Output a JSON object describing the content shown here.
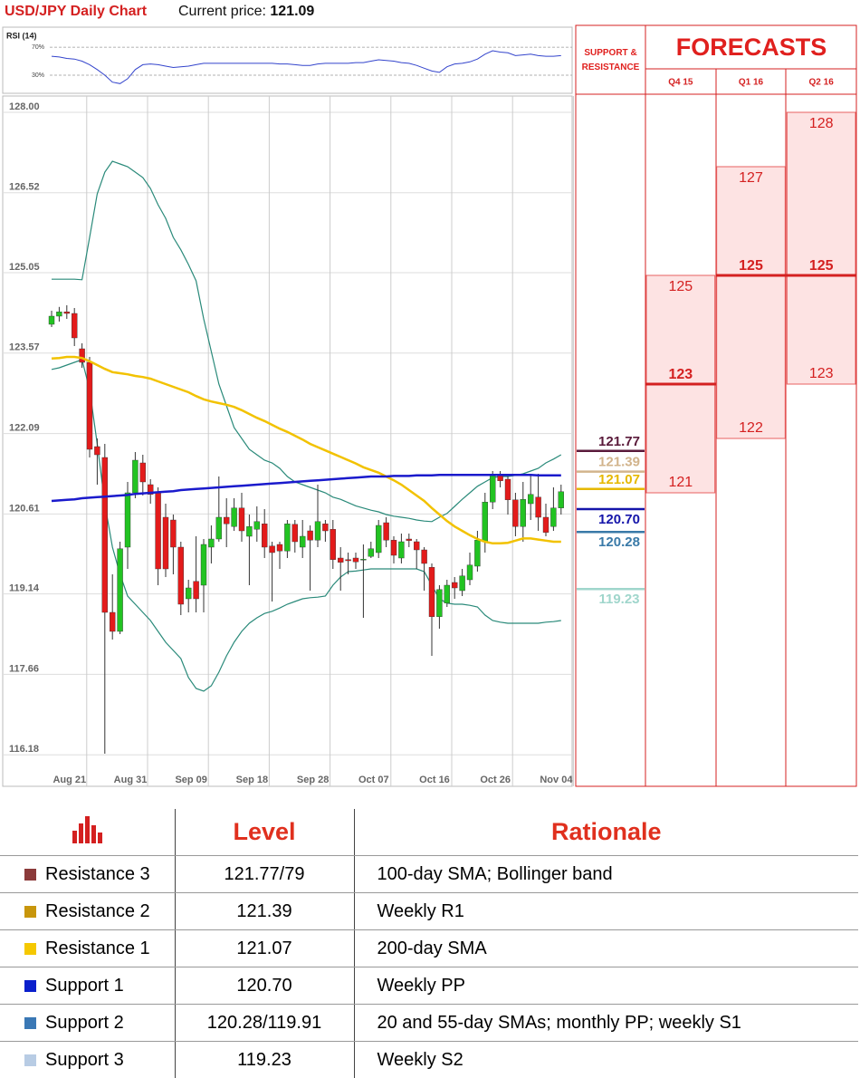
{
  "header": {
    "title": "USD/JPY Daily Chart",
    "price_label": "Current price:",
    "price": 121.09
  },
  "chart_data": [
    {
      "type": "line",
      "title": "RSI (14)",
      "color": "#3344cc",
      "ylim": [
        8,
        96
      ],
      "yticks": [
        {
          "value": 70,
          "label": "70%"
        },
        {
          "value": 30,
          "label": "30%"
        }
      ],
      "values": [
        57,
        56,
        54,
        53,
        50,
        45,
        38,
        30,
        20,
        18,
        25,
        38,
        45,
        46,
        45,
        43,
        41,
        42,
        43,
        45,
        47,
        47,
        47,
        47,
        47,
        47,
        47,
        47,
        47,
        47,
        46,
        46,
        45,
        44,
        44,
        46,
        47,
        47,
        47,
        47,
        48,
        48,
        50,
        52,
        51,
        50,
        48,
        47,
        44,
        40,
        36,
        34,
        42,
        46,
        47,
        49,
        53,
        60,
        65,
        63,
        62,
        58,
        59,
        60,
        58,
        57,
        57,
        58
      ]
    },
    {
      "type": "candlestick",
      "up_color": "#22c322",
      "down_color": "#e31b1b",
      "ylim": [
        115.8,
        128.2
      ],
      "yticks": [
        {
          "value": 128,
          "label": "128.00"
        },
        126.52,
        125.05,
        123.57,
        122.09,
        120.61,
        119.14,
        117.66,
        116.18
      ],
      "grid": true,
      "categories": [
        null,
        null,
        "Aug 21",
        null,
        null,
        null,
        null,
        null,
        null,
        null,
        "Aug 31",
        null,
        null,
        null,
        null,
        null,
        null,
        null,
        "Sep 09",
        null,
        null,
        null,
        null,
        null,
        null,
        null,
        "Sep 18",
        null,
        null,
        null,
        null,
        null,
        null,
        null,
        "Sep 28",
        null,
        null,
        null,
        null,
        null,
        null,
        null,
        "Oct 07",
        null,
        null,
        null,
        null,
        null,
        null,
        null,
        "Oct 16",
        null,
        null,
        null,
        null,
        null,
        null,
        null,
        "Oct 26",
        null,
        null,
        null,
        null,
        null,
        null,
        null,
        "Nov 04",
        null
      ],
      "open": [
        124.1,
        124.25,
        124.33,
        124.3,
        123.65,
        123.4,
        121.85,
        121.65,
        118.8,
        118.45,
        120.0,
        121.0,
        121.55,
        121.15,
        121.0,
        120.55,
        120.5,
        120.0,
        119.05,
        119.37,
        119.3,
        120.0,
        120.15,
        120.55,
        120.38,
        120.72,
        120.2,
        120.33,
        120.43,
        120.02,
        120.05,
        119.93,
        120.42,
        120.0,
        120.3,
        120.13,
        120.43,
        120.33,
        119.8,
        119.77,
        119.8,
        119.77,
        119.83,
        119.9,
        120.45,
        120.13,
        119.8,
        120.15,
        120.1,
        119.95,
        119.63,
        118.72,
        118.97,
        119.35,
        119.2,
        119.4,
        119.65,
        120.1,
        120.83,
        121.33,
        121.25,
        120.87,
        120.38,
        120.8,
        120.92,
        120.55,
        120.38,
        120.72
      ],
      "high": [
        124.35,
        124.42,
        124.45,
        124.4,
        123.75,
        123.5,
        122.0,
        121.9,
        119.5,
        120.1,
        121.2,
        121.75,
        121.7,
        121.25,
        121.1,
        120.8,
        120.6,
        120.1,
        119.4,
        120.2,
        120.15,
        120.4,
        121.3,
        120.9,
        120.9,
        121.0,
        120.6,
        120.75,
        120.7,
        120.1,
        120.1,
        120.5,
        120.5,
        120.5,
        120.4,
        121.15,
        120.5,
        120.5,
        120.0,
        119.9,
        119.9,
        120.05,
        120.1,
        120.5,
        120.55,
        120.2,
        120.25,
        120.25,
        120.15,
        120.0,
        119.7,
        119.3,
        119.4,
        119.45,
        119.6,
        119.9,
        120.3,
        121.0,
        121.4,
        121.4,
        121.3,
        121.0,
        121.2,
        121.35,
        121.35,
        120.8,
        121.1,
        121.15
      ],
      "low": [
        124.05,
        124.15,
        124.2,
        123.7,
        123.3,
        121.65,
        121.15,
        116.2,
        118.3,
        118.4,
        119.6,
        120.9,
        120.95,
        120.8,
        119.3,
        119.45,
        119.5,
        118.75,
        118.8,
        118.8,
        118.8,
        119.7,
        120.1,
        120.0,
        120.3,
        120.1,
        119.3,
        120.1,
        119.8,
        119.0,
        119.6,
        119.8,
        119.9,
        119.8,
        119.2,
        120.0,
        120.1,
        119.6,
        119.2,
        119.5,
        119.6,
        118.7,
        119.8,
        119.8,
        120.0,
        119.7,
        119.7,
        120.0,
        119.6,
        119.2,
        118.0,
        118.5,
        118.9,
        119.05,
        119.1,
        119.3,
        119.55,
        119.9,
        120.7,
        121.1,
        120.6,
        120.2,
        120.1,
        120.5,
        120.3,
        120.2,
        120.3,
        120.6
      ],
      "close": [
        124.25,
        124.33,
        124.3,
        123.85,
        123.4,
        121.8,
        121.7,
        118.8,
        118.45,
        119.97,
        121.0,
        121.6,
        121.2,
        120.97,
        119.6,
        119.6,
        120.0,
        118.95,
        119.25,
        119.05,
        120.05,
        120.15,
        120.55,
        120.43,
        120.72,
        120.3,
        120.38,
        120.47,
        120.0,
        119.9,
        119.93,
        120.43,
        120.1,
        120.2,
        120.13,
        120.47,
        120.3,
        119.77,
        119.72,
        119.75,
        119.73,
        119.78,
        119.97,
        120.4,
        120.13,
        119.85,
        120.1,
        120.12,
        119.95,
        119.7,
        118.72,
        119.22,
        119.3,
        119.25,
        119.47,
        119.67,
        120.13,
        120.83,
        121.33,
        121.22,
        120.87,
        120.38,
        120.88,
        120.97,
        120.55,
        120.27,
        120.72,
        121.02
      ],
      "overlays": [
        {
          "color": "#2a8a7a",
          "width": 1.2,
          "values": [
            124.93,
            124.93,
            124.93,
            124.93,
            124.92,
            125.7,
            126.5,
            126.9,
            127.1,
            127.05,
            127.0,
            126.9,
            126.8,
            126.6,
            126.3,
            126.05,
            125.7,
            125.47,
            125.2,
            124.9,
            124.2,
            123.6,
            123.0,
            122.6,
            122.2,
            122.0,
            121.8,
            121.7,
            121.6,
            121.55,
            121.45,
            121.3,
            121.2,
            121.15,
            121.1,
            121.05,
            121.0,
            120.92,
            120.88,
            120.82,
            120.76,
            120.72,
            120.68,
            120.65,
            120.6,
            120.57,
            120.55,
            120.53,
            120.5,
            120.48,
            120.47,
            120.55,
            120.62,
            120.75,
            120.88,
            121.0,
            121.12,
            121.2,
            121.28,
            121.3,
            121.3,
            121.32,
            121.35,
            121.4,
            121.45,
            121.55,
            121.62,
            121.7
          ]
        },
        {
          "color": "#2a8a7a",
          "width": 1.2,
          "values": [
            123.27,
            123.3,
            123.35,
            123.4,
            123.45,
            122.9,
            121.9,
            120.8,
            120.0,
            119.5,
            119.1,
            118.95,
            118.8,
            118.65,
            118.45,
            118.25,
            118.1,
            117.95,
            117.6,
            117.4,
            117.35,
            117.45,
            117.7,
            118.0,
            118.25,
            118.45,
            118.6,
            118.7,
            118.78,
            118.82,
            118.88,
            118.95,
            119.0,
            119.05,
            119.07,
            119.08,
            119.1,
            119.3,
            119.45,
            119.55,
            119.56,
            119.58,
            119.6,
            119.6,
            119.6,
            119.6,
            119.6,
            119.6,
            119.6,
            119.55,
            119.3,
            119.05,
            118.97,
            118.95,
            118.95,
            118.93,
            118.9,
            118.75,
            118.65,
            118.62,
            118.6,
            118.6,
            118.6,
            118.6,
            118.6,
            118.62,
            118.63,
            118.65
          ]
        },
        {
          "color": "#f2c200",
          "width": 2.5,
          "values": [
            123.47,
            123.48,
            123.5,
            123.5,
            123.48,
            123.42,
            123.35,
            123.28,
            123.22,
            123.2,
            123.18,
            123.15,
            123.13,
            123.1,
            123.05,
            123.0,
            122.95,
            122.9,
            122.85,
            122.78,
            122.72,
            122.68,
            122.65,
            122.62,
            122.58,
            122.52,
            122.45,
            122.38,
            122.32,
            122.25,
            122.18,
            122.12,
            122.05,
            121.98,
            121.9,
            121.84,
            121.78,
            121.72,
            121.66,
            121.6,
            121.54,
            121.47,
            121.42,
            121.37,
            121.3,
            121.23,
            121.15,
            121.05,
            120.95,
            120.85,
            120.72,
            120.6,
            120.48,
            120.38,
            120.3,
            120.22,
            120.15,
            120.1,
            120.07,
            120.07,
            120.08,
            120.12,
            120.16,
            120.16,
            120.14,
            120.12,
            120.1,
            120.1
          ]
        },
        {
          "color": "#1a1acc",
          "width": 2.5,
          "values": [
            120.85,
            120.86,
            120.87,
            120.88,
            120.9,
            120.91,
            120.92,
            120.93,
            120.94,
            120.95,
            120.96,
            120.98,
            120.99,
            121,
            121.01,
            121.02,
            121.03,
            121.05,
            121.06,
            121.07,
            121.08,
            121.09,
            121.1,
            121.11,
            121.12,
            121.13,
            121.14,
            121.15,
            121.16,
            121.17,
            121.18,
            121.19,
            121.2,
            121.21,
            121.22,
            121.23,
            121.24,
            121.25,
            121.26,
            121.27,
            121.28,
            121.29,
            121.3,
            121.3,
            121.3,
            121.31,
            121.31,
            121.31,
            121.32,
            121.32,
            121.32,
            121.33,
            121.33,
            121.33,
            121.33,
            121.33,
            121.33,
            121.33,
            121.33,
            121.33,
            121.33,
            121.33,
            121.33,
            121.33,
            121.32,
            121.32,
            121.32,
            121.32
          ]
        }
      ]
    }
  ],
  "forecasts": {
    "sr_header": "SUPPORT & RESISTANCE",
    "title": "FORECASTS",
    "levels": {
      "values": [
        121.77,
        121.39,
        121.07,
        120.7,
        120.28,
        119.23
      ],
      "value_labels": [
        "121.77",
        "121.39",
        "121.07",
        "120.70",
        "120.28",
        "119.23"
      ],
      "colors": [
        "#5a1a3a",
        "#d2b48c",
        "#e6b800",
        "#1515aa",
        "#3a7aa8",
        "#a0d6cc"
      ]
    },
    "columns": [
      {
        "label": "Q4 15",
        "high": 125,
        "mid": 123,
        "low": 121
      },
      {
        "label": "Q1 16",
        "high": 127,
        "mid": 125,
        "low": 122
      },
      {
        "label": "Q2 16",
        "high": 128,
        "mid": 125,
        "low": 123
      }
    ]
  },
  "table": {
    "header": [
      "Level",
      "Rationale"
    ],
    "rows": [
      {
        "name": "Resistance 3",
        "color": "#8b3a3a",
        "level": "121.77/79",
        "rationale": "100-day SMA; Bollinger band"
      },
      {
        "name": "Resistance 2",
        "color": "#c8960c",
        "level": "121.39",
        "rationale": "Weekly R1"
      },
      {
        "name": "Resistance 1",
        "color": "#f5c800",
        "level": "121.07",
        "rationale": "200-day SMA"
      },
      {
        "name": "Support 1",
        "color": "#0a1fcc",
        "level": "120.70",
        "rationale": "Weekly PP"
      },
      {
        "name": "Support 2",
        "color": "#3a78b5",
        "level": "120.28/119.91",
        "rationale": "20 and 55-day SMAs; monthly PP; weekly S1"
      },
      {
        "name": "Support 3",
        "color": "#b8cce4",
        "level": "119.23",
        "rationale": "Weekly S2"
      }
    ]
  }
}
